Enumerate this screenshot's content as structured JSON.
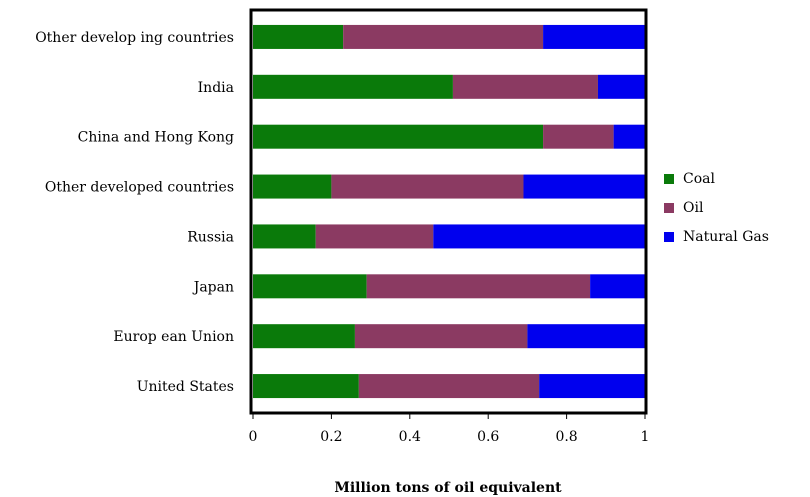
{
  "chart_data": {
    "type": "bar",
    "orientation": "horizontal",
    "stacked": true,
    "categories": [
      "Other develop ing countries",
      "India",
      "China and Hong Kong",
      "Other developed countries",
      "Russia",
      "Japan",
      "Europ ean Union",
      "United States"
    ],
    "series": [
      {
        "name": "Coal",
        "color": "#0a7a0a",
        "values": [
          0.23,
          0.51,
          0.74,
          0.2,
          0.16,
          0.29,
          0.26,
          0.27
        ]
      },
      {
        "name": "Oil",
        "color": "#8b3a62",
        "values": [
          0.51,
          0.37,
          0.18,
          0.49,
          0.3,
          0.57,
          0.44,
          0.46
        ]
      },
      {
        "name": "Natural Gas",
        "color": "#0000ee",
        "values": [
          0.26,
          0.12,
          0.08,
          0.31,
          0.54,
          0.14,
          0.3,
          0.27
        ]
      }
    ],
    "xlabel": "Million tons of oil equivalent",
    "xlim": [
      0,
      1
    ],
    "xticks": [
      "0",
      "0.2",
      "0.4",
      "0.6",
      "0.8",
      "1"
    ],
    "legend_position": "right",
    "grid": false
  }
}
